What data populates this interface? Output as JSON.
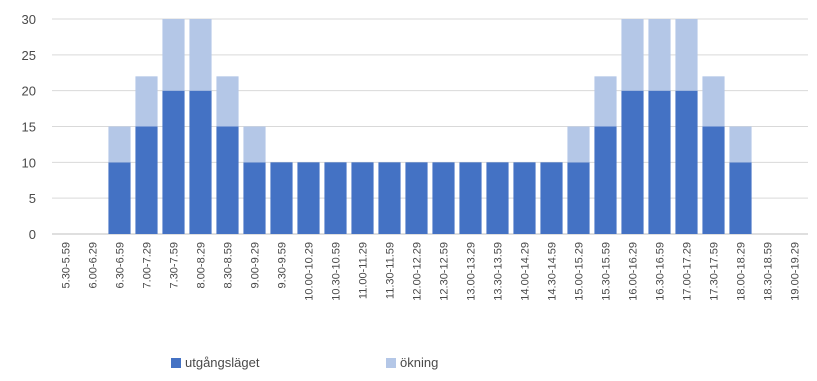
{
  "chart_data": {
    "type": "bar",
    "stacked": true,
    "categories": [
      "5.30-5.59",
      "6.00-6.29",
      "6.30-6.59",
      "7.00-7.29",
      "7.30-7.59",
      "8.00-8.29",
      "8.30-8.59",
      "9.00-9.29",
      "9.30-9.59",
      "10.00-10.29",
      "10.30-10.59",
      "11.00-11.29",
      "11.30-11.59",
      "12.00-12.29",
      "12.30-12.59",
      "13.00-13.29",
      "13.30-13.59",
      "14.00-14.29",
      "14.30-14.59",
      "15.00-15.29",
      "15.30-15.59",
      "16.00-16.29",
      "16.30-16.59",
      "17.00-17.29",
      "17.30-17.59",
      "18.00-18.29",
      "18.30-18.59",
      "19.00-19.29"
    ],
    "series": [
      {
        "name": "utgångsläget",
        "color": "#4472c4",
        "values": [
          0,
          0,
          10,
          15,
          20,
          20,
          15,
          10,
          10,
          10,
          10,
          10,
          10,
          10,
          10,
          10,
          10,
          10,
          10,
          10,
          15,
          20,
          20,
          20,
          15,
          10,
          0,
          0
        ]
      },
      {
        "name": "ökning",
        "color": "#b4c7e7",
        "values": [
          0,
          0,
          5,
          7,
          10,
          10,
          7,
          5,
          0,
          0,
          0,
          0,
          0,
          0,
          0,
          0,
          0,
          0,
          0,
          5,
          7,
          10,
          10,
          10,
          7,
          5,
          0,
          0
        ]
      }
    ],
    "ylim": [
      0,
      30
    ],
    "yticks": [
      0,
      5,
      10,
      15,
      20,
      25,
      30
    ],
    "grid": true,
    "legend_position": "bottom"
  }
}
